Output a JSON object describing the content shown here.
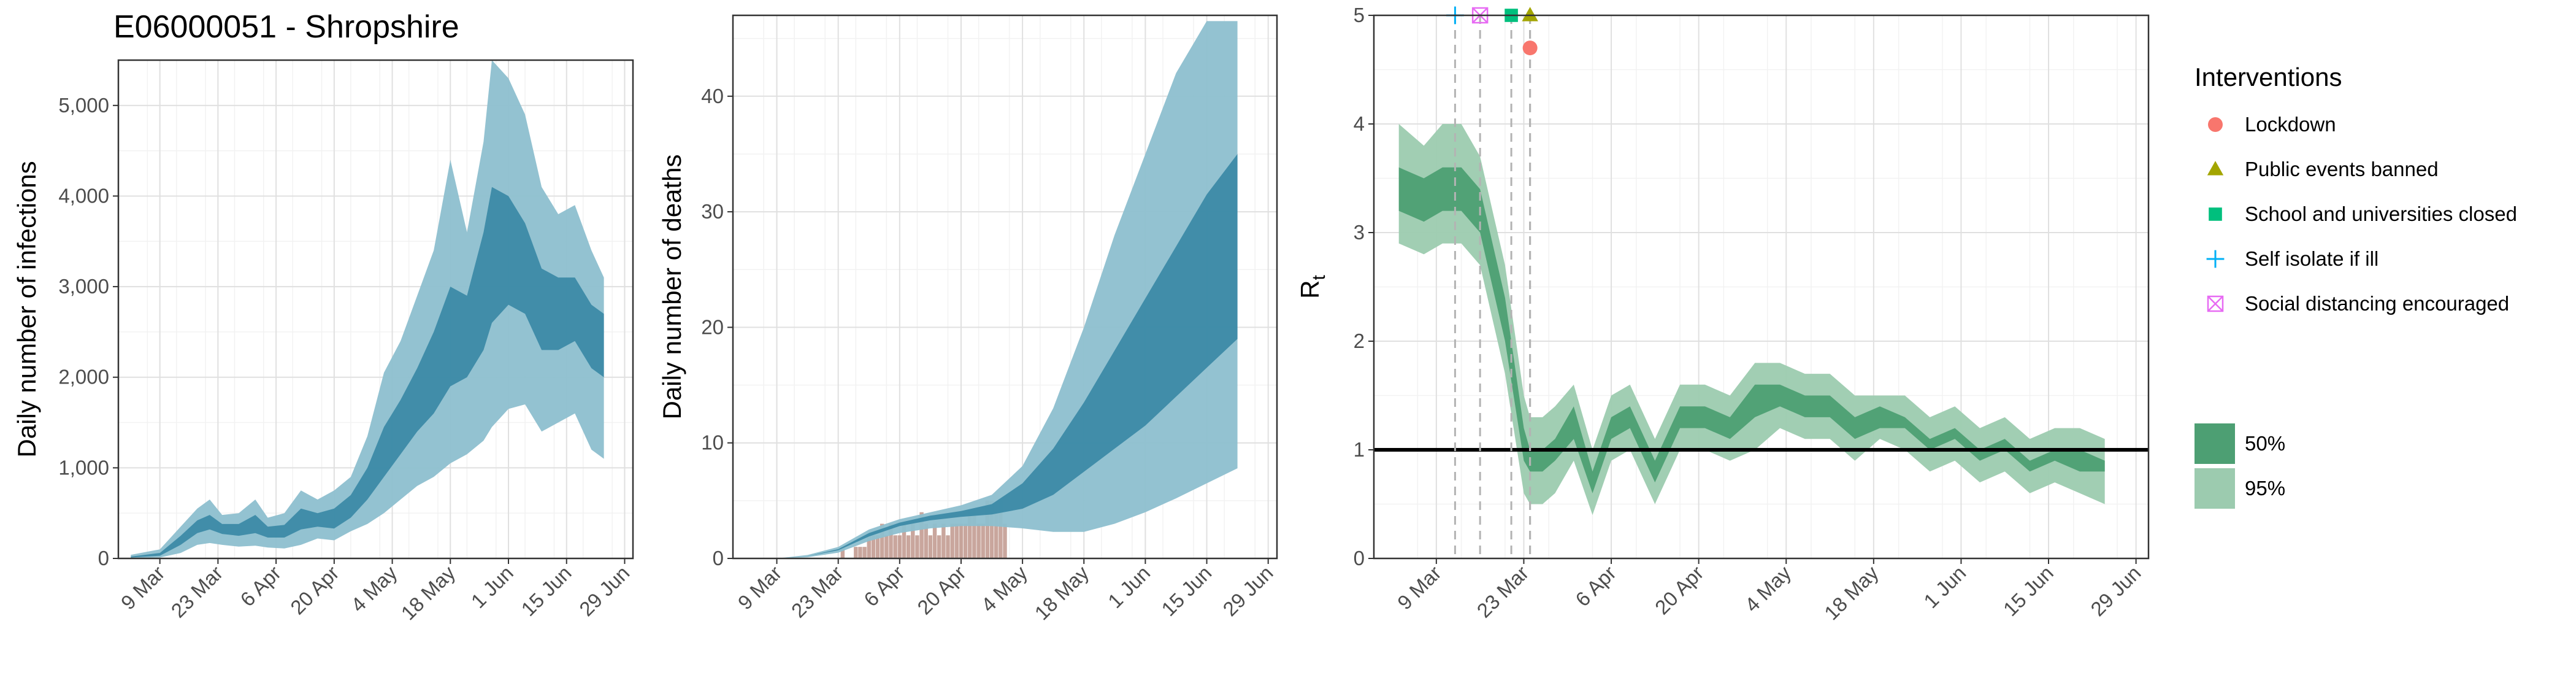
{
  "title": "E06000051 - Shropshire",
  "colors": {
    "infections_95": "#8dbfcf",
    "infections_50": "#3c8aa6",
    "deaths_95": "#8dbfcf",
    "deaths_50": "#3c8aa6",
    "deaths_bar": "#c0968c",
    "rt_95": "#9ccbaf",
    "rt_50": "#4d9f73",
    "lockdown": "#f8766d",
    "public_events": "#a3a500",
    "school": "#00bf7d",
    "self_isolate": "#00b0f6",
    "social_distancing": "#e76bf3"
  },
  "chart_data": [
    {
      "type": "area",
      "name": "infections",
      "ylabel": "Daily number of infections",
      "ylim": [
        0,
        5500
      ],
      "yticks": [
        0,
        1000,
        2000,
        3000,
        4000,
        5000
      ],
      "ytick_labels": [
        "0",
        "1,000",
        "2,000",
        "3,000",
        "4,000",
        "5,000"
      ],
      "xlim": [
        "2020-02-28",
        "2020-07-01"
      ],
      "xticks": [
        "2020-03-09",
        "2020-03-23",
        "2020-04-06",
        "2020-04-20",
        "2020-05-04",
        "2020-05-18",
        "2020-06-01",
        "2020-06-15",
        "2020-06-29"
      ],
      "xtick_labels": [
        "9 Mar",
        "23 Mar",
        "6 Apr",
        "20 Apr",
        "4 May",
        "18 May",
        "1 Jun",
        "15 Jun",
        "29 Jun"
      ],
      "series": [
        {
          "level": "95%",
          "x": [
            "2020-03-02",
            "2020-03-09",
            "2020-03-14",
            "2020-03-18",
            "2020-03-21",
            "2020-03-24",
            "2020-03-28",
            "2020-04-01",
            "2020-04-04",
            "2020-04-08",
            "2020-04-12",
            "2020-04-16",
            "2020-04-20",
            "2020-04-24",
            "2020-04-28",
            "2020-05-02",
            "2020-05-06",
            "2020-05-10",
            "2020-05-14",
            "2020-05-18",
            "2020-05-22",
            "2020-05-26",
            "2020-05-28",
            "2020-06-01",
            "2020-06-05",
            "2020-06-09",
            "2020-06-13",
            "2020-06-17",
            "2020-06-21",
            "2020-06-24"
          ],
          "lower": [
            0,
            10,
            60,
            150,
            170,
            150,
            130,
            140,
            120,
            110,
            150,
            220,
            200,
            300,
            380,
            500,
            650,
            800,
            900,
            1050,
            1150,
            1300,
            1450,
            1650,
            1700,
            1400,
            1500,
            1600,
            1200,
            1100
          ],
          "upper": [
            40,
            100,
            350,
            550,
            650,
            480,
            500,
            650,
            450,
            500,
            750,
            650,
            750,
            900,
            1350,
            2050,
            2400,
            2900,
            3400,
            4400,
            3600,
            4600,
            5500,
            5300,
            4900,
            4100,
            3800,
            3900,
            3400,
            3100
          ]
        },
        {
          "level": "50%",
          "x": [
            "2020-03-02",
            "2020-03-09",
            "2020-03-14",
            "2020-03-18",
            "2020-03-21",
            "2020-03-24",
            "2020-03-28",
            "2020-04-01",
            "2020-04-04",
            "2020-04-08",
            "2020-04-12",
            "2020-04-16",
            "2020-04-20",
            "2020-04-24",
            "2020-04-28",
            "2020-05-02",
            "2020-05-06",
            "2020-05-10",
            "2020-05-14",
            "2020-05-18",
            "2020-05-22",
            "2020-05-26",
            "2020-05-28",
            "2020-06-01",
            "2020-06-05",
            "2020-06-09",
            "2020-06-13",
            "2020-06-17",
            "2020-06-21",
            "2020-06-24"
          ],
          "lower": [
            10,
            30,
            150,
            280,
            320,
            270,
            250,
            280,
            230,
            230,
            320,
            350,
            330,
            450,
            650,
            900,
            1150,
            1400,
            1600,
            1900,
            2000,
            2300,
            2600,
            2800,
            2700,
            2300,
            2300,
            2400,
            2100,
            2000
          ],
          "upper": [
            20,
            60,
            250,
            420,
            480,
            380,
            380,
            480,
            350,
            370,
            550,
            500,
            550,
            700,
            1000,
            1450,
            1750,
            2100,
            2500,
            3000,
            2900,
            3600,
            4100,
            4000,
            3700,
            3200,
            3100,
            3100,
            2800,
            2700
          ]
        }
      ]
    },
    {
      "type": "area",
      "name": "deaths",
      "ylabel": "Daily number of deaths",
      "ylim": [
        0,
        47
      ],
      "yticks": [
        0,
        10,
        20,
        30,
        40
      ],
      "ytick_labels": [
        "0",
        "10",
        "20",
        "30",
        "40"
      ],
      "xlim": [
        "2020-02-28",
        "2020-07-01"
      ],
      "xticks": [
        "2020-03-09",
        "2020-03-23",
        "2020-04-06",
        "2020-04-20",
        "2020-05-04",
        "2020-05-18",
        "2020-06-01",
        "2020-06-15",
        "2020-06-29"
      ],
      "xtick_labels": [
        "9 Mar",
        "23 Mar",
        "6 Apr",
        "20 Apr",
        "4 May",
        "18 May",
        "1 Jun",
        "15 Jun",
        "29 Jun"
      ],
      "series": [
        {
          "level": "95%",
          "x": [
            "2020-03-09",
            "2020-03-16",
            "2020-03-23",
            "2020-03-30",
            "2020-04-06",
            "2020-04-13",
            "2020-04-20",
            "2020-04-27",
            "2020-05-04",
            "2020-05-11",
            "2020-05-18",
            "2020-05-25",
            "2020-06-01",
            "2020-06-08",
            "2020-06-15",
            "2020-06-22"
          ],
          "lower": [
            0,
            0.1,
            0.5,
            1.5,
            2.2,
            2.6,
            2.8,
            2.8,
            2.6,
            2.3,
            2.3,
            3.0,
            4.0,
            5.2,
            6.5,
            7.8
          ],
          "upper": [
            0,
            0.3,
            1.0,
            2.5,
            3.4,
            4.0,
            4.6,
            5.5,
            8.0,
            13.0,
            20.0,
            28.0,
            35.0,
            42.0,
            46.5,
            46.5
          ]
        },
        {
          "level": "50%",
          "x": [
            "2020-03-09",
            "2020-03-16",
            "2020-03-23",
            "2020-03-30",
            "2020-04-06",
            "2020-04-13",
            "2020-04-20",
            "2020-04-27",
            "2020-05-04",
            "2020-05-11",
            "2020-05-18",
            "2020-05-25",
            "2020-06-01",
            "2020-06-08",
            "2020-06-15",
            "2020-06-22"
          ],
          "lower": [
            0,
            0.2,
            0.7,
            1.9,
            2.8,
            3.3,
            3.6,
            3.8,
            4.3,
            5.5,
            7.5,
            9.5,
            11.5,
            14.0,
            16.5,
            19.0
          ],
          "upper": [
            0,
            0.2,
            0.8,
            2.2,
            3.1,
            3.7,
            4.1,
            4.7,
            6.5,
            9.5,
            13.5,
            18.0,
            22.5,
            27.0,
            31.5,
            35.0
          ]
        }
      ],
      "bars": {
        "x": [
          "2020-03-24",
          "2020-03-27",
          "2020-03-28",
          "2020-03-29",
          "2020-03-30",
          "2020-03-31",
          "2020-04-01",
          "2020-04-02",
          "2020-04-03",
          "2020-04-04",
          "2020-04-05",
          "2020-04-06",
          "2020-04-07",
          "2020-04-08",
          "2020-04-09",
          "2020-04-10",
          "2020-04-11",
          "2020-04-12",
          "2020-04-13",
          "2020-04-14",
          "2020-04-15",
          "2020-04-16",
          "2020-04-17",
          "2020-04-18",
          "2020-04-19",
          "2020-04-20",
          "2020-04-21",
          "2020-04-22",
          "2020-04-23",
          "2020-04-24",
          "2020-04-25",
          "2020-04-26",
          "2020-04-27",
          "2020-04-28",
          "2020-04-29",
          "2020-04-30"
        ],
        "values": [
          1,
          1,
          1,
          1,
          2,
          2,
          2,
          3,
          2,
          3,
          2,
          2,
          3,
          2,
          3,
          2,
          4,
          3,
          2,
          3,
          2,
          3,
          2,
          3,
          3,
          3,
          3,
          4,
          4,
          3,
          3,
          5,
          5,
          4,
          5,
          3
        ]
      }
    },
    {
      "type": "area",
      "name": "rt",
      "ylabel": "R",
      "ylabel_subscript": "t",
      "ylim": [
        0,
        5
      ],
      "yticks": [
        0,
        1,
        2,
        3,
        4,
        5
      ],
      "ytick_labels": [
        "0",
        "1",
        "2",
        "3",
        "4",
        "5"
      ],
      "xlim": [
        "2020-02-28",
        "2020-07-01"
      ],
      "xticks": [
        "2020-03-09",
        "2020-03-23",
        "2020-04-06",
        "2020-04-20",
        "2020-05-04",
        "2020-05-18",
        "2020-06-01",
        "2020-06-15",
        "2020-06-29"
      ],
      "xtick_labels": [
        "9 Mar",
        "23 Mar",
        "6 Apr",
        "20 Apr",
        "4 May",
        "18 May",
        "1 Jun",
        "15 Jun",
        "29 Jun"
      ],
      "reference_line": 1,
      "series": [
        {
          "level": "95%",
          "x": [
            "2020-03-03",
            "2020-03-07",
            "2020-03-10",
            "2020-03-13",
            "2020-03-16",
            "2020-03-18",
            "2020-03-20",
            "2020-03-23",
            "2020-03-24",
            "2020-03-26",
            "2020-03-28",
            "2020-03-31",
            "2020-04-03",
            "2020-04-06",
            "2020-04-09",
            "2020-04-13",
            "2020-04-17",
            "2020-04-21",
            "2020-04-25",
            "2020-04-29",
            "2020-05-03",
            "2020-05-07",
            "2020-05-11",
            "2020-05-15",
            "2020-05-19",
            "2020-05-23",
            "2020-05-27",
            "2020-05-31",
            "2020-06-04",
            "2020-06-08",
            "2020-06-12",
            "2020-06-16",
            "2020-06-20",
            "2020-06-24"
          ],
          "lower": [
            2.9,
            2.8,
            2.9,
            2.9,
            2.7,
            2.2,
            1.7,
            0.6,
            0.5,
            0.5,
            0.6,
            0.9,
            0.4,
            0.9,
            1.0,
            0.5,
            1.0,
            1.0,
            0.9,
            1.0,
            1.2,
            1.1,
            1.1,
            0.9,
            1.1,
            1.0,
            0.8,
            0.9,
            0.7,
            0.8,
            0.6,
            0.7,
            0.6,
            0.5
          ],
          "upper": [
            4.0,
            3.8,
            4.0,
            4.0,
            3.7,
            3.2,
            2.7,
            1.5,
            1.3,
            1.3,
            1.4,
            1.6,
            1.0,
            1.5,
            1.6,
            1.1,
            1.6,
            1.6,
            1.5,
            1.8,
            1.8,
            1.7,
            1.7,
            1.5,
            1.5,
            1.5,
            1.3,
            1.4,
            1.2,
            1.3,
            1.1,
            1.2,
            1.2,
            1.1
          ]
        },
        {
          "level": "50%",
          "x": [
            "2020-03-03",
            "2020-03-07",
            "2020-03-10",
            "2020-03-13",
            "2020-03-16",
            "2020-03-18",
            "2020-03-20",
            "2020-03-23",
            "2020-03-24",
            "2020-03-26",
            "2020-03-28",
            "2020-03-31",
            "2020-04-03",
            "2020-04-06",
            "2020-04-09",
            "2020-04-13",
            "2020-04-17",
            "2020-04-21",
            "2020-04-25",
            "2020-04-29",
            "2020-05-03",
            "2020-05-07",
            "2020-05-11",
            "2020-05-15",
            "2020-05-19",
            "2020-05-23",
            "2020-05-27",
            "2020-05-31",
            "2020-06-04",
            "2020-06-08",
            "2020-06-12",
            "2020-06-16",
            "2020-06-20",
            "2020-06-24"
          ],
          "lower": [
            3.2,
            3.1,
            3.2,
            3.2,
            3.0,
            2.5,
            2.0,
            0.9,
            0.8,
            0.8,
            0.9,
            1.1,
            0.6,
            1.1,
            1.2,
            0.7,
            1.2,
            1.2,
            1.1,
            1.3,
            1.4,
            1.3,
            1.3,
            1.1,
            1.2,
            1.2,
            1.0,
            1.1,
            0.9,
            1.0,
            0.8,
            0.9,
            0.8,
            0.8
          ],
          "upper": [
            3.6,
            3.5,
            3.6,
            3.6,
            3.4,
            2.9,
            2.4,
            1.2,
            1.0,
            1.0,
            1.1,
            1.4,
            0.8,
            1.3,
            1.4,
            0.9,
            1.4,
            1.4,
            1.3,
            1.6,
            1.6,
            1.5,
            1.5,
            1.3,
            1.4,
            1.3,
            1.1,
            1.2,
            1.0,
            1.1,
            0.9,
            1.0,
            1.0,
            0.9
          ]
        }
      ],
      "interventions": [
        {
          "name": "Self isolate if ill",
          "date": "2020-03-12",
          "y": 5.0,
          "symbol": "plus",
          "color": "#00b0f6"
        },
        {
          "name": "Social distancing encouraged",
          "date": "2020-03-16",
          "y": 5.0,
          "symbol": "square-x",
          "color": "#e76bf3"
        },
        {
          "name": "School and universities closed",
          "date": "2020-03-21",
          "y": 5.0,
          "symbol": "square",
          "color": "#00bf7d"
        },
        {
          "name": "Public events banned",
          "date": "2020-03-24",
          "y": 5.0,
          "symbol": "triangle",
          "color": "#a3a500"
        },
        {
          "name": "Lockdown",
          "date": "2020-03-24",
          "y": 4.7,
          "symbol": "circle",
          "color": "#f8766d"
        }
      ]
    }
  ],
  "legend": {
    "title": "Interventions",
    "items": [
      {
        "label": "Lockdown",
        "symbol": "circle",
        "color": "#f8766d"
      },
      {
        "label": "Public events banned",
        "symbol": "triangle",
        "color": "#a3a500"
      },
      {
        "label": "School and universities closed",
        "symbol": "square",
        "color": "#00bf7d"
      },
      {
        "label": "Self isolate if ill",
        "symbol": "plus",
        "color": "#00b0f6"
      },
      {
        "label": "Social distancing encouraged",
        "symbol": "square-x",
        "color": "#e76bf3"
      }
    ],
    "ci_items": [
      {
        "label": "50%",
        "color": "#4d9f73"
      },
      {
        "label": "95%",
        "color": "#9ccbaf"
      }
    ]
  }
}
